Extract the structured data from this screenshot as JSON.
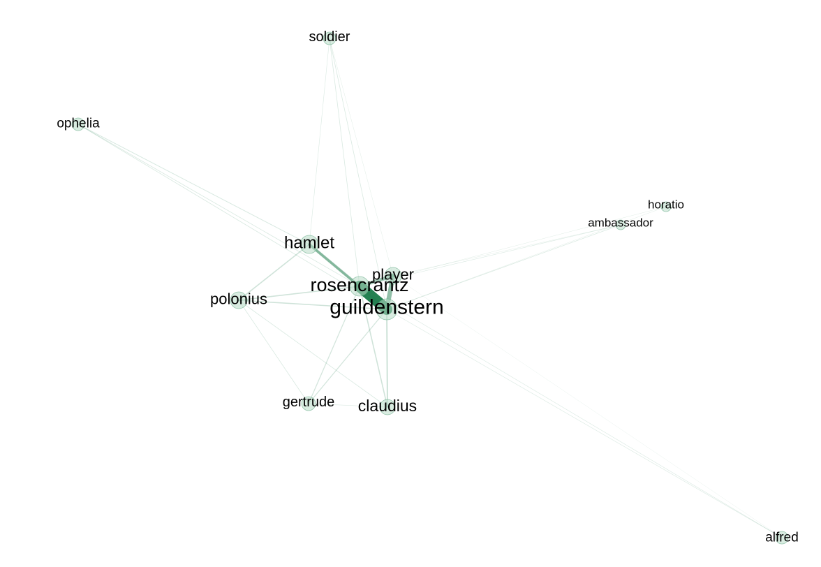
{
  "colors": {
    "edge": "#1a7a4a",
    "node_fill": "#b9dcc8",
    "node_stroke": "#5aa57f",
    "label": "#000000"
  },
  "nodes": [
    {
      "id": "soldier",
      "label": "soldier",
      "size": "small"
    },
    {
      "id": "ophelia",
      "label": "ophelia",
      "size": "small"
    },
    {
      "id": "horatio",
      "label": "horatio",
      "size": "small"
    },
    {
      "id": "ambassador",
      "label": "ambassador",
      "size": "small"
    },
    {
      "id": "hamlet",
      "label": "hamlet",
      "size": "medium"
    },
    {
      "id": "player",
      "label": "player",
      "size": "medium"
    },
    {
      "id": "rosencrantz",
      "label": "rosencrantz",
      "size": "large"
    },
    {
      "id": "guildenstern",
      "label": "guildenstern",
      "size": "large"
    },
    {
      "id": "polonius",
      "label": "polonius",
      "size": "medium"
    },
    {
      "id": "gertrude",
      "label": "gertrude",
      "size": "small"
    },
    {
      "id": "claudius",
      "label": "claudius",
      "size": "medium"
    },
    {
      "id": "alfred",
      "label": "alfred",
      "size": "small"
    }
  ],
  "edges": [
    {
      "source": "rosencrantz",
      "target": "guildenstern",
      "weight": 10
    },
    {
      "source": "player",
      "target": "guildenstern",
      "weight": 4
    },
    {
      "source": "player",
      "target": "rosencrantz",
      "weight": 3
    },
    {
      "source": "hamlet",
      "target": "rosencrantz",
      "weight": 2.5
    },
    {
      "source": "hamlet",
      "target": "guildenstern",
      "weight": 2
    },
    {
      "source": "hamlet",
      "target": "polonius",
      "weight": 1
    },
    {
      "source": "hamlet",
      "target": "soldier",
      "weight": 0.4
    },
    {
      "source": "hamlet",
      "target": "ophelia",
      "weight": 0.6
    },
    {
      "source": "polonius",
      "target": "rosencrantz",
      "weight": 1
    },
    {
      "source": "polonius",
      "target": "guildenstern",
      "weight": 1
    },
    {
      "source": "polonius",
      "target": "gertrude",
      "weight": 0.5
    },
    {
      "source": "polonius",
      "target": "claudius",
      "weight": 0.5
    },
    {
      "source": "claudius",
      "target": "rosencrantz",
      "weight": 1
    },
    {
      "source": "claudius",
      "target": "guildenstern",
      "weight": 1.2
    },
    {
      "source": "claudius",
      "target": "gertrude",
      "weight": 0.4
    },
    {
      "source": "gertrude",
      "target": "rosencrantz",
      "weight": 0.8
    },
    {
      "source": "gertrude",
      "target": "guildenstern",
      "weight": 0.8
    },
    {
      "source": "soldier",
      "target": "rosencrantz",
      "weight": 0.5
    },
    {
      "source": "soldier",
      "target": "guildenstern",
      "weight": 0.5
    },
    {
      "source": "soldier",
      "target": "player",
      "weight": 0.3
    },
    {
      "source": "ophelia",
      "target": "rosencrantz",
      "weight": 0.5
    },
    {
      "source": "ophelia",
      "target": "guildenstern",
      "weight": 0.5
    },
    {
      "source": "ambassador",
      "target": "guildenstern",
      "weight": 0.5
    },
    {
      "source": "ambassador",
      "target": "rosencrantz",
      "weight": 0.4
    },
    {
      "source": "ambassador",
      "target": "player",
      "weight": 0.3
    },
    {
      "source": "horatio",
      "target": "guildenstern",
      "weight": 0.3
    },
    {
      "source": "horatio",
      "target": "rosencrantz",
      "weight": 0.3
    },
    {
      "source": "alfred",
      "target": "guildenstern",
      "weight": 0.4
    },
    {
      "source": "alfred",
      "target": "rosencrantz",
      "weight": 0.4
    },
    {
      "source": "alfred",
      "target": "player",
      "weight": 0.2
    }
  ]
}
